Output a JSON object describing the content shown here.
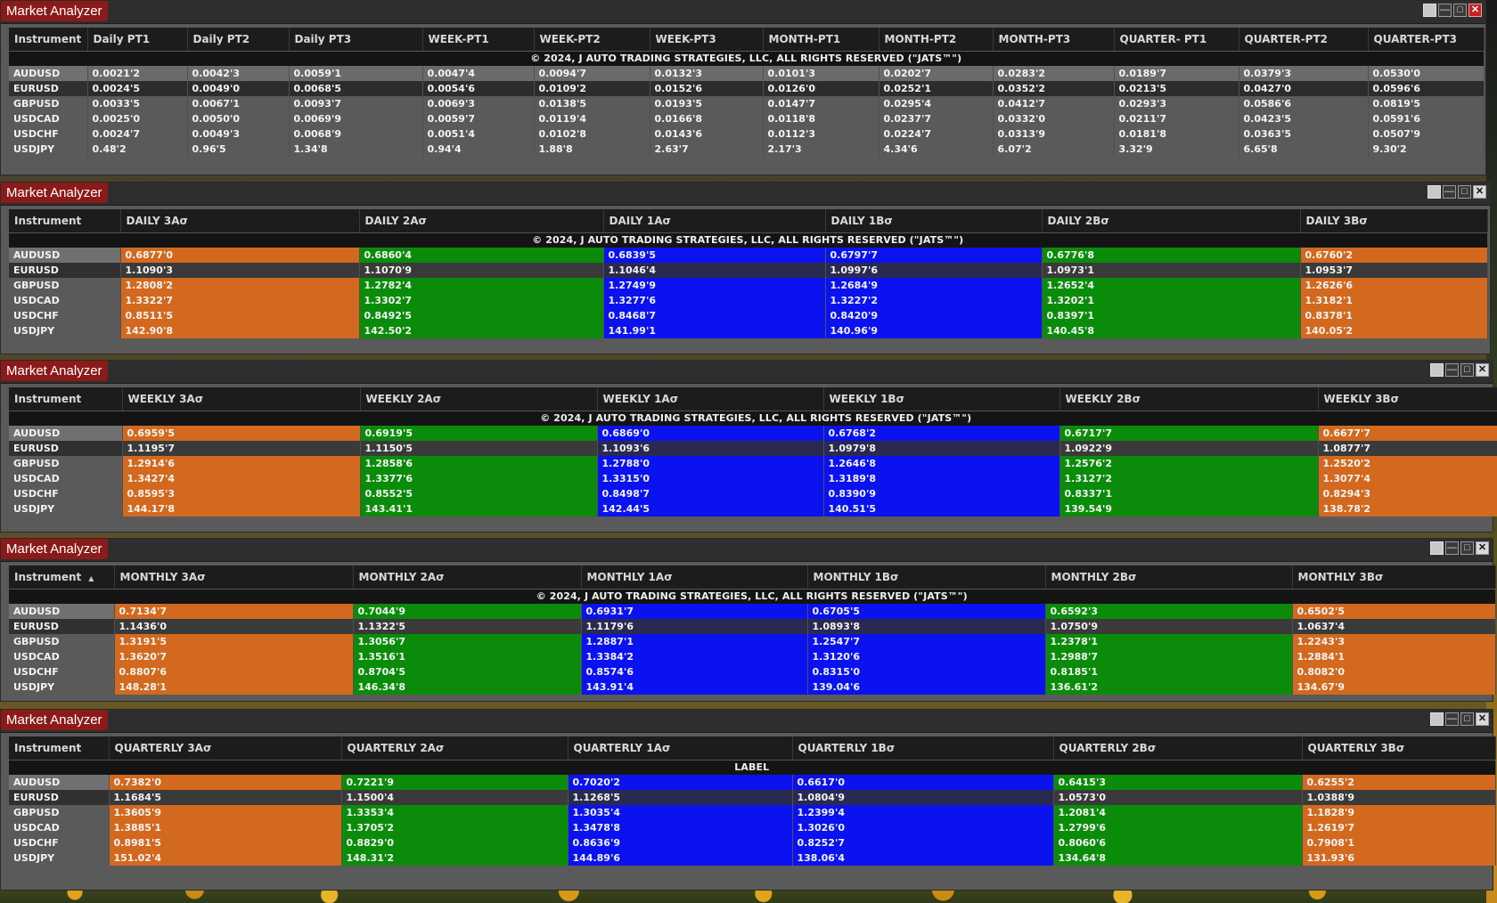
{
  "copyright": "© 2024, J AUTO TRADING STRATEGIES, LLC, ALL RIGHTS RESERVED (\"JATS™\")",
  "colors": {
    "above": "#d2691e",
    "mid": "#0a8c0a",
    "inner": "#0a12f0",
    "title": "#8b1a1a"
  },
  "instruments": [
    "AUDUSD",
    "EURUSD",
    "GBPUSD",
    "USDCAD",
    "USDCHF",
    "USDJPY"
  ],
  "windows": [
    {
      "title": "Market Analyzer",
      "banner": "© 2024, J AUTO TRADING STRATEGIES, LLC, ALL RIGHTS RESERVED (\"JATS™\")",
      "columns": [
        "Instrument",
        "Daily PT1",
        "Daily PT2",
        "Daily PT3",
        "WEEK-PT1",
        "WEEK-PT2",
        "WEEK-PT3",
        "MONTH-PT1",
        "MONTH-PT2",
        "MONTH-PT3",
        "QUARTER- PT1",
        "QUARTER-PT2",
        "QUARTER-PT3"
      ],
      "rows": [
        [
          "AUDUSD",
          "0.0021'2",
          "0.0042'3",
          "0.0059'1",
          "0.0047'4",
          "0.0094'7",
          "0.0132'3",
          "0.0101'3",
          "0.0202'7",
          "0.0283'2",
          "0.0189'7",
          "0.0379'3",
          "0.0530'0"
        ],
        [
          "EURUSD",
          "0.0024'5",
          "0.0049'0",
          "0.0068'5",
          "0.0054'6",
          "0.0109'2",
          "0.0152'6",
          "0.0126'0",
          "0.0252'1",
          "0.0352'2",
          "0.0213'5",
          "0.0427'0",
          "0.0596'6"
        ],
        [
          "GBPUSD",
          "0.0033'5",
          "0.0067'1",
          "0.0093'7",
          "0.0069'3",
          "0.0138'5",
          "0.0193'5",
          "0.0147'7",
          "0.0295'4",
          "0.0412'7",
          "0.0293'3",
          "0.0586'6",
          "0.0819'5"
        ],
        [
          "USDCAD",
          "0.0025'0",
          "0.0050'0",
          "0.0069'9",
          "0.0059'7",
          "0.0119'4",
          "0.0166'8",
          "0.0118'8",
          "0.0237'7",
          "0.0332'0",
          "0.0211'7",
          "0.0423'5",
          "0.0591'6"
        ],
        [
          "USDCHF",
          "0.0024'7",
          "0.0049'3",
          "0.0068'9",
          "0.0051'4",
          "0.0102'8",
          "0.0143'6",
          "0.0112'3",
          "0.0224'7",
          "0.0313'9",
          "0.0181'8",
          "0.0363'5",
          "0.0507'9"
        ],
        [
          "USDJPY",
          "0.48'2",
          "0.96'5",
          "1.34'8",
          "0.94'4",
          "1.88'8",
          "2.63'7",
          "2.17'3",
          "4.34'6",
          "6.07'2",
          "3.32'9",
          "6.65'8",
          "9.30'2"
        ]
      ]
    },
    {
      "title": "Market Analyzer",
      "banner": "© 2024, J AUTO TRADING STRATEGIES, LLC, ALL RIGHTS RESERVED (\"JATS™\")",
      "columns": [
        "Instrument",
        "DAILY 3Aσ",
        "DAILY 2Aσ",
        "DAILY 1Aσ",
        "DAILY 1Bσ",
        "DAILY 2Bσ",
        "DAILY 3Bσ"
      ],
      "rows": [
        [
          "AUDUSD",
          "0.6877'0",
          "0.6860'4",
          "0.6839'5",
          "0.6797'7",
          "0.6776'8",
          "0.6760'2"
        ],
        [
          "EURUSD",
          "1.1090'3",
          "1.1070'9",
          "1.1046'4",
          "1.0997'6",
          "1.0973'1",
          "1.0953'7"
        ],
        [
          "GBPUSD",
          "1.2808'2",
          "1.2782'4",
          "1.2749'9",
          "1.2684'9",
          "1.2652'4",
          "1.2626'6"
        ],
        [
          "USDCAD",
          "1.3322'7",
          "1.3302'7",
          "1.3277'6",
          "1.3227'2",
          "1.3202'1",
          "1.3182'1"
        ],
        [
          "USDCHF",
          "0.8511'5",
          "0.8492'5",
          "0.8468'7",
          "0.8420'9",
          "0.8397'1",
          "0.8378'1"
        ],
        [
          "USDJPY",
          "142.90'8",
          "142.50'2",
          "141.99'1",
          "140.96'9",
          "140.45'8",
          "140.05'2"
        ]
      ]
    },
    {
      "title": "Market Analyzer",
      "banner": "© 2024, J AUTO TRADING STRATEGIES, LLC, ALL RIGHTS RESERVED (\"JATS™\")",
      "columns": [
        "Instrument",
        "WEEKLY 3Aσ",
        "WEEKLY 2Aσ",
        "WEEKLY 1Aσ",
        "WEEKLY 1Bσ",
        "WEEKLY 2Bσ",
        "WEEKLY 3Bσ"
      ],
      "rows": [
        [
          "AUDUSD",
          "0.6959'5",
          "0.6919'5",
          "0.6869'0",
          "0.6768'2",
          "0.6717'7",
          "0.6677'7"
        ],
        [
          "EURUSD",
          "1.1195'7",
          "1.1150'5",
          "1.1093'6",
          "1.0979'8",
          "1.0922'9",
          "1.0877'7"
        ],
        [
          "GBPUSD",
          "1.2914'6",
          "1.2858'6",
          "1.2788'0",
          "1.2646'8",
          "1.2576'2",
          "1.2520'2"
        ],
        [
          "USDCAD",
          "1.3427'4",
          "1.3377'6",
          "1.3315'0",
          "1.3189'8",
          "1.3127'2",
          "1.3077'4"
        ],
        [
          "USDCHF",
          "0.8595'3",
          "0.8552'5",
          "0.8498'7",
          "0.8390'9",
          "0.8337'1",
          "0.8294'3"
        ],
        [
          "USDJPY",
          "144.17'8",
          "143.41'1",
          "142.44'5",
          "140.51'5",
          "139.54'9",
          "138.78'2"
        ]
      ]
    },
    {
      "title": "Market Analyzer",
      "banner": "© 2024, J AUTO TRADING STRATEGIES, LLC, ALL RIGHTS RESERVED (\"JATS™\")",
      "columns": [
        "Instrument",
        "MONTHLY 3Aσ",
        "MONTHLY 2Aσ",
        "MONTHLY 1Aσ",
        "MONTHLY 1Bσ",
        "MONTHLY 2Bσ",
        "MONTHLY 3Bσ"
      ],
      "rows": [
        [
          "AUDUSD",
          "0.7134'7",
          "0.7044'9",
          "0.6931'7",
          "0.6705'5",
          "0.6592'3",
          "0.6502'5"
        ],
        [
          "EURUSD",
          "1.1436'0",
          "1.1322'5",
          "1.1179'6",
          "1.0893'8",
          "1.0750'9",
          "1.0637'4"
        ],
        [
          "GBPUSD",
          "1.3191'5",
          "1.3056'7",
          "1.2887'1",
          "1.2547'7",
          "1.2378'1",
          "1.2243'3"
        ],
        [
          "USDCAD",
          "1.3620'7",
          "1.3516'1",
          "1.3384'2",
          "1.3120'6",
          "1.2988'7",
          "1.2884'1"
        ],
        [
          "USDCHF",
          "0.8807'6",
          "0.8704'5",
          "0.8574'6",
          "0.8315'0",
          "0.8185'1",
          "0.8082'0"
        ],
        [
          "USDJPY",
          "148.28'1",
          "146.34'8",
          "143.91'4",
          "139.04'6",
          "136.61'2",
          "134.67'9"
        ]
      ]
    },
    {
      "title": "Market Analyzer",
      "banner": "LABEL",
      "columns": [
        "Instrument",
        "QUARTERLY 3Aσ",
        "QUARTERLY 2Aσ",
        "QUARTERLY 1Aσ",
        "QUARTERLY 1Bσ",
        "QUARTERLY 2Bσ",
        "QUARTERLY 3Bσ"
      ],
      "rows": [
        [
          "AUDUSD",
          "0.7382'0",
          "0.7221'9",
          "0.7020'2",
          "0.6617'0",
          "0.6415'3",
          "0.6255'2"
        ],
        [
          "EURUSD",
          "1.1684'5",
          "1.1500'4",
          "1.1268'5",
          "1.0804'9",
          "1.0573'0",
          "1.0388'9"
        ],
        [
          "GBPUSD",
          "1.3605'9",
          "1.3353'4",
          "1.3035'4",
          "1.2399'4",
          "1.2081'4",
          "1.1828'9"
        ],
        [
          "USDCAD",
          "1.3885'1",
          "1.3705'2",
          "1.3478'8",
          "1.3026'0",
          "1.2799'6",
          "1.2619'7"
        ],
        [
          "USDCHF",
          "0.8981'5",
          "0.8829'0",
          "0.8636'9",
          "0.8252'7",
          "0.8060'6",
          "0.7908'1"
        ],
        [
          "USDJPY",
          "151.02'4",
          "148.31'2",
          "144.89'6",
          "138.06'4",
          "134.64'8",
          "131.93'6"
        ]
      ]
    }
  ]
}
